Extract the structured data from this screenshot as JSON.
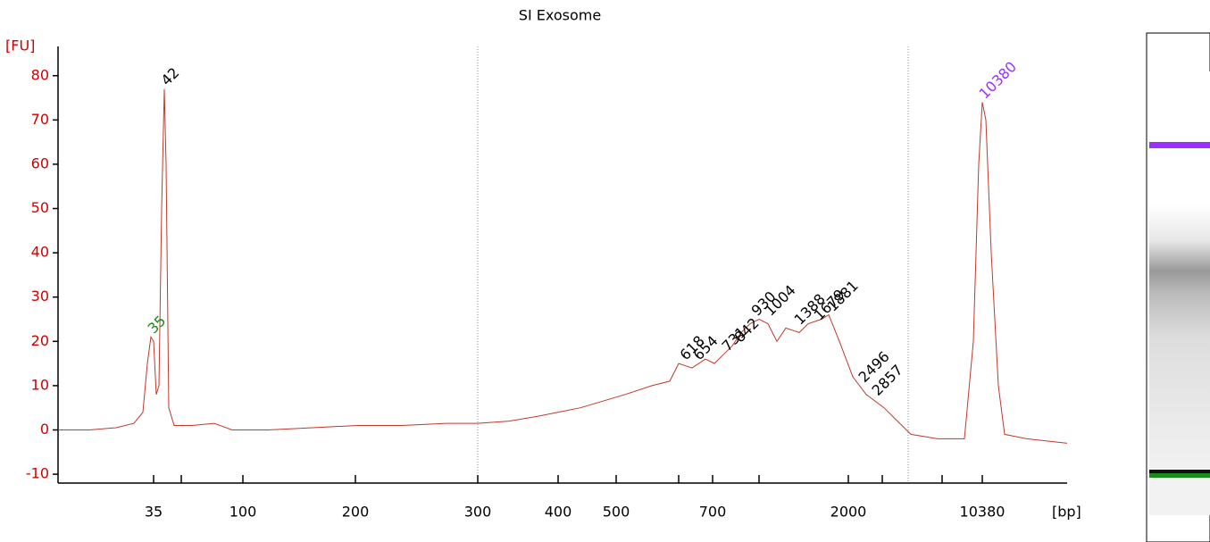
{
  "chart_data": {
    "type": "line",
    "title": "SI Exosome",
    "y_label": "[FU]",
    "x_label": "[bp]",
    "ylim": [
      -12,
      86
    ],
    "yticks": [
      -10,
      0,
      10,
      20,
      30,
      40,
      50,
      60,
      70,
      80
    ],
    "xlim": [
      0,
      226
    ],
    "xticks": [
      {
        "value": 21.4,
        "label": "35"
      },
      {
        "value": 27.6,
        "label": null
      },
      {
        "value": 41.4,
        "label": "100"
      },
      {
        "value": 66.6,
        "label": "200"
      },
      {
        "value": 94,
        "label": "300"
      },
      {
        "value": 112,
        "label": "400"
      },
      {
        "value": 125,
        "label": "500"
      },
      {
        "value": 139,
        "label": null
      },
      {
        "value": 146.6,
        "label": "700"
      },
      {
        "value": 157,
        "label": null
      },
      {
        "value": 177,
        "label": "2000"
      },
      {
        "value": 184.6,
        "label": null
      },
      {
        "value": 198,
        "label": null
      },
      {
        "value": 207,
        "label": "10380"
      }
    ],
    "series": [
      {
        "name": "SI Exosome",
        "color": "#c0392b",
        "x": [
          0,
          7,
          13,
          17,
          19,
          20,
          20.8,
          21.4,
          22,
          22.6,
          23.2,
          23.8,
          24.2,
          24.8,
          26,
          30,
          35,
          39,
          47,
          57,
          67,
          77,
          87,
          94,
          101,
          107,
          117,
          127,
          133,
          137,
          139,
          142,
          145,
          147,
          149,
          151,
          153,
          155,
          157,
          159,
          161,
          163,
          166,
          168,
          171,
          172.6,
          175,
          178,
          181,
          185,
          188,
          191,
          197,
          203,
          205,
          206.2,
          207,
          207.8,
          209,
          210.6,
          212,
          217,
          226
        ],
        "values": [
          0,
          0,
          0.5,
          1.5,
          4,
          15,
          21,
          20,
          8,
          10,
          50,
          77,
          60,
          5,
          1,
          1,
          1.5,
          0,
          0,
          0.5,
          1,
          1,
          1.5,
          1.5,
          2,
          3,
          5,
          8,
          10,
          11,
          15,
          14,
          16,
          15,
          17,
          19,
          22,
          24,
          25,
          24,
          20,
          23,
          22,
          24,
          25,
          26,
          20,
          12,
          8,
          5,
          2,
          -1,
          -2,
          -2,
          20,
          60,
          74,
          70,
          40,
          10,
          -1,
          -2,
          -3
        ]
      }
    ],
    "annotations": [
      {
        "text": "35",
        "x": 20.8,
        "y": 21,
        "color": "#1a8a1a"
      },
      {
        "text": "42",
        "x": 23.8,
        "y": 77,
        "color": "#000000"
      },
      {
        "text": "618",
        "x": 140,
        "y": 15,
        "color": "#000000"
      },
      {
        "text": "654",
        "x": 143,
        "y": 15,
        "color": "#000000"
      },
      {
        "text": "731",
        "x": 149.4,
        "y": 17,
        "color": "#000000"
      },
      {
        "text": "842",
        "x": 152.2,
        "y": 19,
        "color": "#000000"
      },
      {
        "text": "930",
        "x": 156,
        "y": 25,
        "color": "#000000"
      },
      {
        "text": "1004",
        "x": 159,
        "y": 25,
        "color": "#000000"
      },
      {
        "text": "1388",
        "x": 165.6,
        "y": 23,
        "color": "#000000"
      },
      {
        "text": "1679",
        "x": 170,
        "y": 24,
        "color": "#000000"
      },
      {
        "text": "1881",
        "x": 173,
        "y": 26,
        "color": "#000000"
      },
      {
        "text": "2496",
        "x": 180,
        "y": 10,
        "color": "#000000"
      },
      {
        "text": "2857",
        "x": 183,
        "y": 7,
        "color": "#000000"
      },
      {
        "text": "10380",
        "x": 207,
        "y": 74,
        "color": "#9b30ff"
      }
    ]
  }
}
